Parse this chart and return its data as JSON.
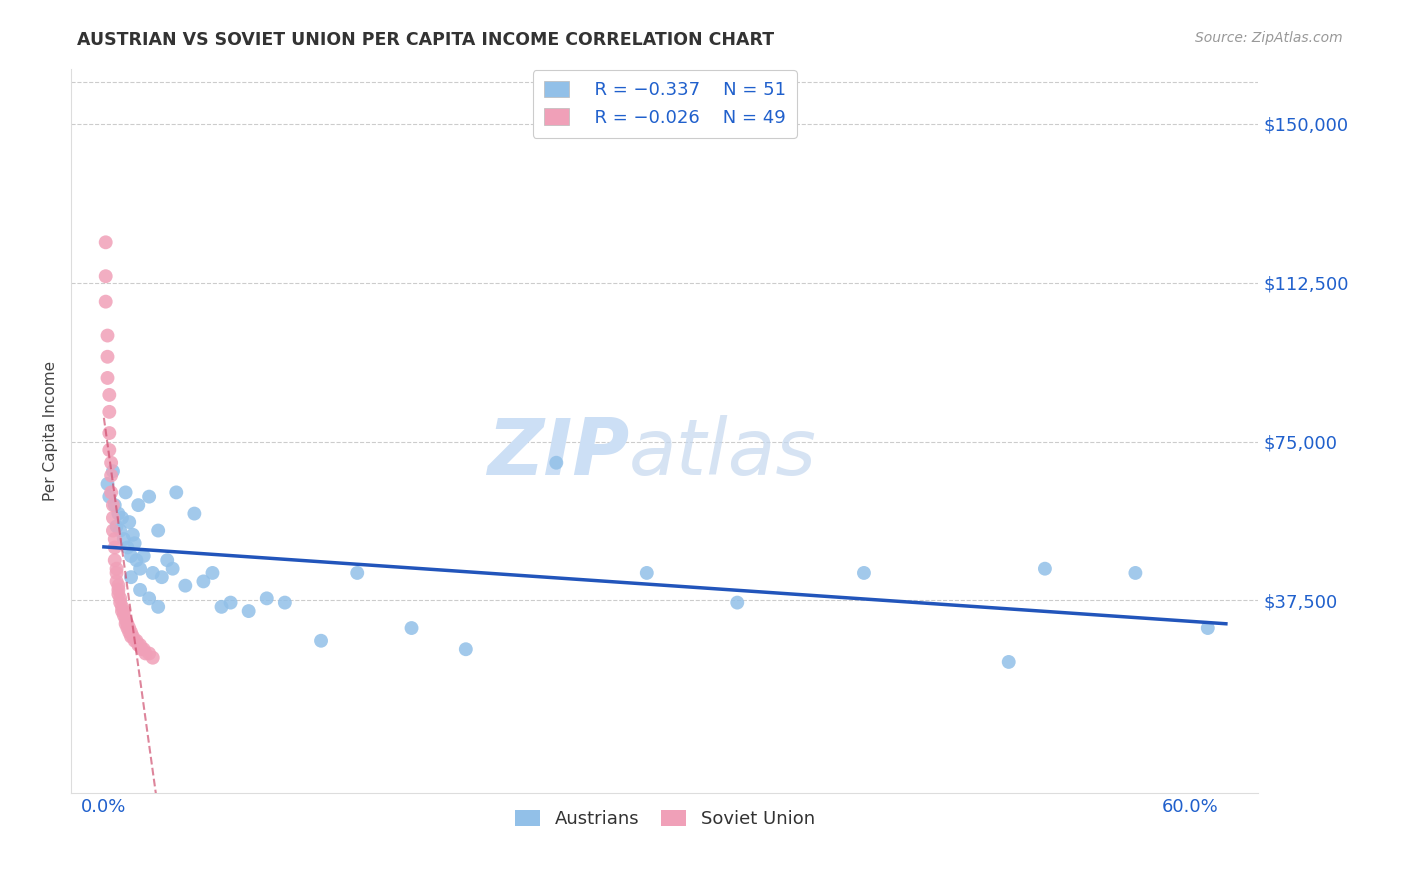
{
  "title": "AUSTRIAN VS SOVIET UNION PER CAPITA INCOME CORRELATION CHART",
  "source": "Source: ZipAtlas.com",
  "ylabel_label": "Per Capita Income",
  "ylabel_ticks": [
    0,
    37500,
    75000,
    112500,
    150000
  ],
  "ylabel_tick_labels": [
    "",
    "$37,500",
    "$75,000",
    "$112,500",
    "$150,000"
  ],
  "xmin": -0.018,
  "xmax": 0.638,
  "ymin": -8000,
  "ymax": 163000,
  "color_austrians": "#92c0e8",
  "color_soviet": "#f0a0b8",
  "color_trend_austrians": "#2255bb",
  "color_trend_soviet": "#cc4466",
  "legend_label1": "Austrians",
  "legend_label2": "Soviet Union",
  "austrians_x": [
    0.002,
    0.003,
    0.005,
    0.006,
    0.007,
    0.008,
    0.009,
    0.01,
    0.011,
    0.012,
    0.013,
    0.014,
    0.015,
    0.016,
    0.017,
    0.018,
    0.019,
    0.02,
    0.022,
    0.025,
    0.027,
    0.03,
    0.032,
    0.035,
    0.038,
    0.04,
    0.045,
    0.05,
    0.055,
    0.06,
    0.065,
    0.07,
    0.08,
    0.09,
    0.1,
    0.12,
    0.14,
    0.17,
    0.2,
    0.25,
    0.3,
    0.35,
    0.42,
    0.5,
    0.52,
    0.57,
    0.61,
    0.015,
    0.02,
    0.025,
    0.03
  ],
  "austrians_y": [
    65000,
    62000,
    68000,
    60000,
    55000,
    58000,
    54000,
    57000,
    52000,
    63000,
    50000,
    56000,
    48000,
    53000,
    51000,
    47000,
    60000,
    45000,
    48000,
    62000,
    44000,
    54000,
    43000,
    47000,
    45000,
    63000,
    41000,
    58000,
    42000,
    44000,
    36000,
    37000,
    35000,
    38000,
    37000,
    28000,
    44000,
    31000,
    26000,
    70000,
    44000,
    37000,
    44000,
    23000,
    45000,
    44000,
    31000,
    43000,
    40000,
    38000,
    36000
  ],
  "soviet_x": [
    0.001,
    0.001,
    0.001,
    0.002,
    0.002,
    0.002,
    0.003,
    0.003,
    0.003,
    0.003,
    0.004,
    0.004,
    0.004,
    0.005,
    0.005,
    0.005,
    0.006,
    0.006,
    0.006,
    0.007,
    0.007,
    0.007,
    0.008,
    0.008,
    0.008,
    0.009,
    0.009,
    0.01,
    0.01,
    0.011,
    0.011,
    0.012,
    0.012,
    0.013,
    0.013,
    0.014,
    0.014,
    0.015,
    0.015,
    0.016,
    0.017,
    0.018,
    0.019,
    0.02,
    0.021,
    0.022,
    0.023,
    0.025,
    0.027
  ],
  "soviet_y": [
    122000,
    114000,
    108000,
    100000,
    95000,
    90000,
    86000,
    82000,
    77000,
    73000,
    70000,
    67000,
    63000,
    60000,
    57000,
    54000,
    52000,
    50000,
    47000,
    45000,
    44000,
    42000,
    41000,
    40000,
    39000,
    38000,
    37000,
    36000,
    35000,
    35000,
    34000,
    33000,
    32000,
    32000,
    31000,
    31000,
    30000,
    30000,
    29000,
    29000,
    28000,
    28000,
    27000,
    27000,
    26000,
    26000,
    25000,
    25000,
    24000
  ]
}
